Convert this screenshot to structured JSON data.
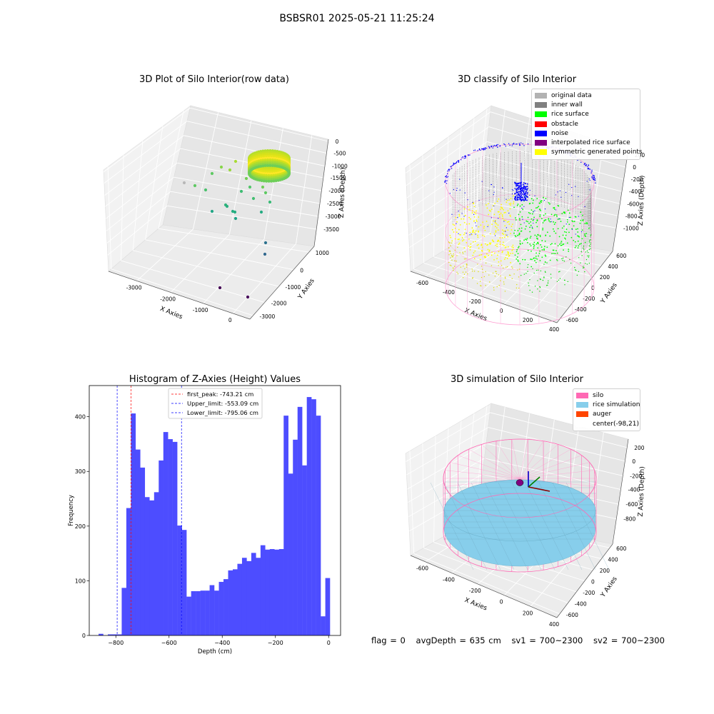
{
  "suptitle": "BSBSR01 2025-05-21 11:25:24",
  "chart_data": [
    {
      "type": "scatter",
      "title": "3D Plot of Silo Interior(row data)",
      "xlabel": "X Axies",
      "ylabel": "Y Axies",
      "zlabel": "Z Axies (Depth)",
      "x_ticks": [
        "-3000",
        "-2000",
        "-1000",
        "0"
      ],
      "y_ticks": [
        "1000",
        "0",
        "-1000",
        "-2000",
        "-3000"
      ],
      "z_ticks": [
        "0",
        "-500",
        "-1000",
        "-1500",
        "-2000",
        "-2500",
        "-3000",
        "-3500"
      ],
      "colormap": "viridis"
    },
    {
      "type": "scatter",
      "title": "3D classify of Silo Interior",
      "xlabel": "X Axies",
      "ylabel": "Y Axies",
      "zlabel": "Z Axies (Depth)",
      "x_ticks": [
        "-600",
        "-400",
        "-200",
        "0",
        "200",
        "400"
      ],
      "y_ticks": [
        "600",
        "400",
        "200",
        "0",
        "-200",
        "-400",
        "-600"
      ],
      "z_ticks": [
        "200",
        "0",
        "-200",
        "-400",
        "-600",
        "-800",
        "-1000"
      ],
      "legend_position": "top-right",
      "legend": [
        {
          "label": "original data",
          "color": "#b2b2b2"
        },
        {
          "label": "inner wall",
          "color": "#808080"
        },
        {
          "label": "rice surface",
          "color": "#00ff00"
        },
        {
          "label": "obstacle",
          "color": "#ff0000"
        },
        {
          "label": "noise",
          "color": "#0000ff"
        },
        {
          "label": "interpolated rice surface",
          "color": "#800080"
        },
        {
          "label": "symmetric generated points",
          "color": "#ffff00"
        }
      ]
    },
    {
      "type": "bar",
      "title": "Histogram of Z-Axies (Height) Values",
      "xlabel": "Depth (cm)",
      "ylabel": "Frequency",
      "xlim": [
        -900,
        45
      ],
      "ylim": [
        0,
        457
      ],
      "x_ticks": [
        -800,
        -600,
        -400,
        -200,
        0
      ],
      "y_ticks": [
        0,
        100,
        200,
        300,
        400
      ],
      "bar_color": "#4d4dff",
      "bin_edges": [
        -865.0,
        -847.6,
        -830.2,
        -812.8,
        -795.4,
        -778.0,
        -760.6,
        -743.2,
        -725.8,
        -708.4,
        -691.0,
        -673.6,
        -656.2,
        -638.8,
        -621.4,
        -604.0,
        -586.6,
        -569.2,
        -551.8,
        -534.4,
        -517.0,
        -499.6,
        -482.2,
        -464.8,
        -447.4,
        -430.0,
        -412.6,
        -395.2,
        -377.8,
        -360.4,
        -343.0,
        -325.6,
        -308.2,
        -290.8,
        -273.4,
        -256.0,
        -238.6,
        -221.2,
        -203.8,
        -186.4,
        -169.0,
        -151.6,
        -134.2,
        -116.8,
        -99.4,
        -82.0,
        -64.6,
        -47.2,
        -29.8,
        -12.4,
        5.0
      ],
      "values": [
        3,
        0,
        2,
        2,
        2,
        87,
        233,
        406,
        340,
        307,
        253,
        247,
        262,
        320,
        372,
        359,
        354,
        201,
        193,
        71,
        81,
        81,
        82,
        82,
        92,
        82,
        98,
        103,
        119,
        121,
        131,
        142,
        136,
        151,
        142,
        165,
        157,
        158,
        157,
        158,
        402,
        296,
        358,
        418,
        311,
        436,
        432,
        402,
        35,
        105
      ],
      "lines": [
        {
          "label": "first_peak: -743.21 cm",
          "x": -743.21,
          "color": "#ff0000"
        },
        {
          "label": "Upper_limit: -553.09 cm",
          "x": -553.09,
          "color": "#0000ff"
        },
        {
          "label": "Lower_limit: -795.06 cm",
          "x": -795.06,
          "color": "#0000ff"
        }
      ],
      "legend_position": "upper-center"
    },
    {
      "type": "scatter",
      "title": "3D simulation of Silo Interior",
      "xlabel": "X Axies",
      "ylabel": "Y Axies",
      "zlabel": "Z Axies (Depth)",
      "x_ticks": [
        "-600",
        "-400",
        "-200",
        "0",
        "200",
        "400"
      ],
      "y_ticks": [
        "600",
        "400",
        "200",
        "0",
        "-200",
        "-400",
        "-600"
      ],
      "z_ticks": [
        "200",
        "0",
        "-200",
        "-400",
        "-600",
        "-800"
      ],
      "legend_position": "top-right",
      "legend": [
        {
          "label": "silo",
          "color": "#ff69b4"
        },
        {
          "label": "rice simulation",
          "color": "#87ceeb"
        },
        {
          "label": "auger",
          "color": "#ff4500"
        },
        {
          "label": "center(-98,21)",
          "color": "#ffffff"
        }
      ]
    }
  ],
  "footer": {
    "flag": "flag = 0",
    "avg_depth": "avgDepth = 635 cm",
    "sv1": "sv1 = 700~2300",
    "sv2": "sv2 = 700~2300"
  }
}
